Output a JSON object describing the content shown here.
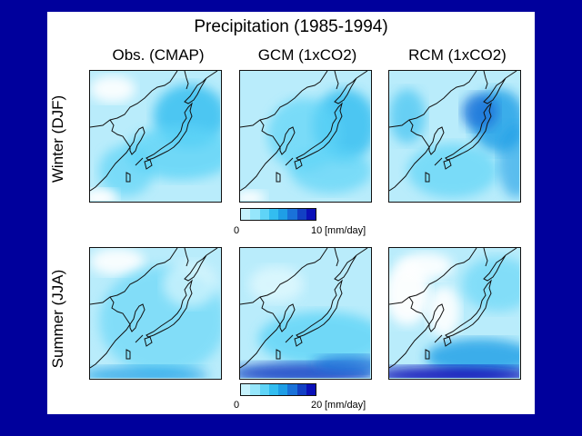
{
  "figure": {
    "title": "Precipitation (1985-1994)",
    "columns": [
      "Obs. (CMAP)",
      "GCM (1xCO2)",
      "RCM (1xCO2)"
    ],
    "rows": [
      "Winter (DJF)",
      "Summer (JJA)"
    ]
  },
  "colorbars": [
    {
      "min_label": "0",
      "max_label": "10",
      "unit": "[mm/day]",
      "colors": [
        "#c6f2fc",
        "#96e6fb",
        "#5fd4f7",
        "#33bdf0",
        "#1f9ee6",
        "#1a72d9",
        "#1240c4",
        "#0a10b8"
      ]
    },
    {
      "min_label": "0",
      "max_label": "20",
      "unit": "[mm/day]",
      "colors": [
        "#c6f2fc",
        "#96e6fb",
        "#5fd4f7",
        "#33bdf0",
        "#1f9ee6",
        "#1a72d9",
        "#1240c4",
        "#0a10b8"
      ]
    }
  ],
  "colors": {
    "background": "#00009c",
    "slide": "#ffffff",
    "base_field": "#b9ecfb"
  }
}
